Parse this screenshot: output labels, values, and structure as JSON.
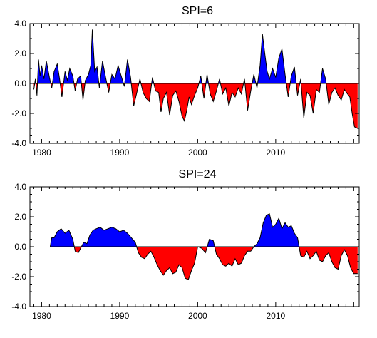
{
  "chart_data": [
    {
      "type": "area",
      "title": "SPI=6",
      "xlabel": "",
      "ylabel": "",
      "xlim": [
        1978.5,
        2020.7
      ],
      "ylim": [
        -4.0,
        4.0
      ],
      "xticks": [
        1980,
        1990,
        2000,
        2010
      ],
      "xtick_labels": [
        "1980",
        "1990",
        "2000",
        "2010"
      ],
      "yticks": [
        -4.0,
        -2.0,
        0.0,
        2.0,
        4.0
      ],
      "ytick_labels": [
        "-4.0",
        "-2.0",
        "0.0",
        "2.0",
        "4.0"
      ],
      "grid": false,
      "legend": "none",
      "colors": {
        "positive": "#0000ff",
        "negative": "#ff0000",
        "line": "#000000"
      },
      "x": [
        1979.0,
        1979.2,
        1979.4,
        1979.6,
        1979.8,
        1980.0,
        1980.3,
        1980.6,
        1981.0,
        1981.3,
        1981.6,
        1982.0,
        1982.3,
        1982.6,
        1983.0,
        1983.3,
        1983.6,
        1984.0,
        1984.3,
        1984.6,
        1985.0,
        1985.3,
        1985.6,
        1986.0,
        1986.3,
        1986.5,
        1986.8,
        1987.1,
        1987.4,
        1987.8,
        1988.2,
        1988.6,
        1989.0,
        1989.4,
        1989.8,
        1990.2,
        1990.6,
        1991.0,
        1991.4,
        1991.8,
        1992.2,
        1992.6,
        1993.0,
        1993.4,
        1993.8,
        1994.2,
        1994.6,
        1995.0,
        1995.3,
        1995.6,
        1996.0,
        1996.4,
        1996.8,
        1997.2,
        1997.6,
        1998.0,
        1998.3,
        1998.6,
        1998.9,
        1999.2,
        1999.6,
        2000.0,
        2000.4,
        2000.8,
        2001.2,
        2001.6,
        2002.0,
        2002.4,
        2002.8,
        2003.2,
        2003.6,
        2004.0,
        2004.4,
        2004.8,
        2005.2,
        2005.6,
        2006.0,
        2006.4,
        2006.8,
        2007.2,
        2007.6,
        2008.0,
        2008.3,
        2008.6,
        2008.9,
        2009.2,
        2009.6,
        2010.0,
        2010.4,
        2010.8,
        2011.2,
        2011.6,
        2012.0,
        2012.4,
        2012.8,
        2013.2,
        2013.6,
        2014.0,
        2014.4,
        2014.8,
        2015.2,
        2015.6,
        2016.0,
        2016.4,
        2016.8,
        2017.2,
        2017.6,
        2018.0,
        2018.4,
        2018.8,
        2019.2,
        2019.5,
        2019.8,
        2020.1,
        2020.5
      ],
      "y": [
        -0.4,
        0.3,
        -0.8,
        1.6,
        0.5,
        1.2,
        0.3,
        1.5,
        0.4,
        -0.3,
        0.8,
        1.3,
        0.3,
        -0.9,
        0.8,
        0.2,
        1.0,
        0.5,
        -0.5,
        0.3,
        0.5,
        -1.1,
        0.2,
        0.6,
        1.2,
        3.6,
        0.8,
        1.1,
        -0.3,
        1.5,
        0.4,
        -0.6,
        0.6,
        0.3,
        1.2,
        0.5,
        -0.2,
        1.6,
        0.4,
        -1.5,
        -0.6,
        0.3,
        -0.6,
        -1.0,
        -1.2,
        0.4,
        -0.5,
        -0.6,
        -1.9,
        -1.0,
        -0.6,
        -2.1,
        -0.8,
        -0.5,
        -1.2,
        -2.2,
        -2.5,
        -1.8,
        -0.9,
        -1.4,
        -0.8,
        -0.3,
        0.5,
        -1.0,
        0.6,
        -0.7,
        -1.2,
        -0.5,
        0.3,
        -0.7,
        -0.3,
        -1.5,
        -0.6,
        -0.9,
        -0.3,
        -0.7,
        0.3,
        -1.8,
        -0.5,
        0.6,
        -0.3,
        1.2,
        3.3,
        2.0,
        0.8,
        0.3,
        1.0,
        0.4,
        1.7,
        2.3,
        0.6,
        -0.9,
        0.5,
        1.1,
        -0.8,
        0.3,
        -2.3,
        -0.6,
        -0.8,
        -2.0,
        -0.4,
        -0.6,
        1.0,
        0.3,
        -1.4,
        -0.6,
        -0.3,
        -0.8,
        -1.1,
        -0.4,
        -0.7,
        -0.9,
        -2.0,
        -2.9,
        -3.0
      ]
    },
    {
      "type": "area",
      "title": "SPI=24",
      "xlabel": "",
      "ylabel": "",
      "xlim": [
        1978.5,
        2020.7
      ],
      "ylim": [
        -4.0,
        4.0
      ],
      "xticks": [
        1980,
        1990,
        2000,
        2010
      ],
      "xtick_labels": [
        "1980",
        "1990",
        "2000",
        "2010"
      ],
      "yticks": [
        -4.0,
        -2.0,
        0.0,
        2.0,
        4.0
      ],
      "ytick_labels": [
        "-4.0",
        "-2.0",
        "0.0",
        "2.0",
        "4.0"
      ],
      "grid": false,
      "legend": "none",
      "colors": {
        "positive": "#0000ff",
        "negative": "#ff0000",
        "line": "#000000"
      },
      "x": [
        1981.1,
        1981.3,
        1981.6,
        1982.0,
        1982.5,
        1983.0,
        1983.5,
        1984.0,
        1984.3,
        1984.7,
        1985.0,
        1985.4,
        1985.8,
        1986.2,
        1986.6,
        1987.0,
        1987.5,
        1988.0,
        1988.5,
        1989.0,
        1989.5,
        1990.0,
        1990.5,
        1991.0,
        1991.5,
        1992.0,
        1992.4,
        1992.8,
        1993.2,
        1993.6,
        1994.0,
        1994.4,
        1994.8,
        1995.2,
        1995.6,
        1996.0,
        1996.4,
        1996.8,
        1997.2,
        1997.6,
        1998.0,
        1998.4,
        1998.8,
        1999.2,
        1999.6,
        2000.0,
        2000.5,
        2001.0,
        2001.5,
        2002.0,
        2002.4,
        2002.8,
        2003.2,
        2003.6,
        2004.0,
        2004.4,
        2004.8,
        2005.2,
        2005.6,
        2006.0,
        2006.4,
        2006.8,
        2007.2,
        2007.6,
        2008.0,
        2008.4,
        2008.8,
        2009.2,
        2009.6,
        2010.0,
        2010.4,
        2010.8,
        2011.2,
        2011.6,
        2012.0,
        2012.4,
        2012.8,
        2013.2,
        2013.6,
        2014.0,
        2014.4,
        2014.8,
        2015.2,
        2015.6,
        2016.0,
        2016.4,
        2016.8,
        2017.2,
        2017.6,
        2018.0,
        2018.4,
        2018.8,
        2019.2,
        2019.6,
        2020.0,
        2020.5
      ],
      "y": [
        0.0,
        0.6,
        0.6,
        1.0,
        1.2,
        0.9,
        1.1,
        0.5,
        -0.3,
        -0.4,
        -0.1,
        0.3,
        0.2,
        0.8,
        1.1,
        1.2,
        1.3,
        1.1,
        1.2,
        1.3,
        1.2,
        1.0,
        1.1,
        0.9,
        0.6,
        0.3,
        -0.4,
        -0.7,
        -0.8,
        -0.5,
        -0.3,
        -0.7,
        -1.2,
        -1.6,
        -1.9,
        -1.6,
        -1.4,
        -1.8,
        -1.7,
        -1.2,
        -1.4,
        -2.1,
        -2.2,
        -1.6,
        -1.1,
        0.0,
        -0.1,
        -0.4,
        0.5,
        0.4,
        -0.5,
        -0.8,
        -1.2,
        -1.3,
        -1.1,
        -1.3,
        -0.8,
        -1.2,
        -1.1,
        -0.6,
        -0.3,
        -0.3,
        0.0,
        0.2,
        0.6,
        1.6,
        2.1,
        2.2,
        1.3,
        1.5,
        1.9,
        1.2,
        1.6,
        1.3,
        1.4,
        0.9,
        0.6,
        -0.6,
        -0.7,
        -0.3,
        -0.8,
        -0.6,
        -0.3,
        -0.9,
        -1.0,
        -0.6,
        -0.4,
        -1.0,
        -1.4,
        -1.5,
        -0.6,
        -0.2,
        -0.6,
        -1.4,
        -1.8,
        -1.8
      ]
    }
  ]
}
